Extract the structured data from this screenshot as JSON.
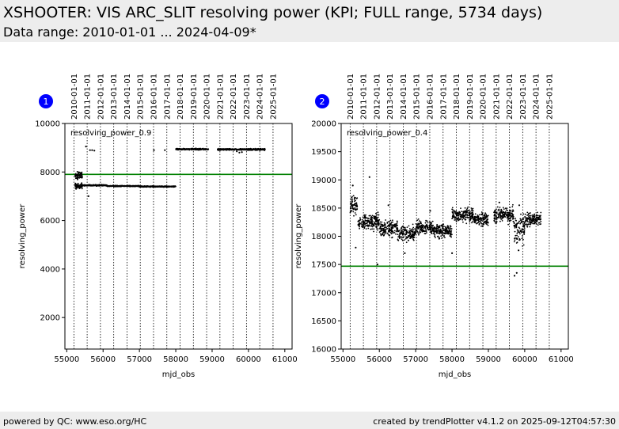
{
  "header": {
    "title": "XSHOOTER: VIS ARC_SLIT resolving power (KPI; FULL range, 5734 days)",
    "subtitle": "Data range: 2010-01-01 ... 2024-04-09*"
  },
  "footer": {
    "left": "powered by QC: www.eso.org/HC",
    "right": "created by trendPlotter v4.1.2 on 2025-09-12T04:57:30"
  },
  "colors": {
    "header_bg": "#ededed",
    "reference_line": "#008000",
    "badge": "#0000ff",
    "points": "#000000"
  },
  "chart_data": [
    {
      "type": "scatter",
      "badge": "1",
      "annotation": "resolving_power_0.9",
      "xlabel": "mjd_obs",
      "ylabel": "resolving_power",
      "xlim": [
        54950,
        61200
      ],
      "ylim": [
        700,
        10000
      ],
      "xticks": [
        55000,
        56000,
        57000,
        58000,
        59000,
        60000,
        61000
      ],
      "yticks": [
        2000,
        4000,
        6000,
        8000,
        10000
      ],
      "year_markers": {
        "labels": [
          "2010-01-01",
          "2011-01-01",
          "2012-01-01",
          "2013-01-01",
          "2014-01-01",
          "2015-01-01",
          "2016-01-01",
          "2017-01-01",
          "2018-01-01",
          "2019-01-01",
          "2020-01-01",
          "2021-01-01",
          "2022-01-01",
          "2023-01-01",
          "2024-01-01",
          "2025-01-01"
        ],
        "mjd": [
          55197,
          55562,
          55927,
          56293,
          56658,
          57023,
          57388,
          57754,
          58119,
          58484,
          58849,
          59215,
          59580,
          59945,
          60310,
          60676
        ]
      },
      "reference_line": 7900,
      "series": [
        {
          "segments": [
            {
              "x": [
                55230,
                55430
              ],
              "y": 7420,
              "spread": 120
            },
            {
              "x": [
                55230,
                55430
              ],
              "y": 7850,
              "spread": 150
            },
            {
              "x": [
                55430,
                56100
              ],
              "y": 7450,
              "spread": 25
            },
            {
              "x": [
                56100,
                57000
              ],
              "y": 7420,
              "spread": 20
            },
            {
              "x": [
                57000,
                58000
              ],
              "y": 7400,
              "spread": 20
            },
            {
              "x": [
                58000,
                58900
              ],
              "y": 8940,
              "spread": 25
            },
            {
              "x": [
                59150,
                60470
              ],
              "y": 8930,
              "spread": 30
            }
          ],
          "outliers": [
            {
              "x": 55530,
              "y": 9050
            },
            {
              "x": 55640,
              "y": 8900
            },
            {
              "x": 55700,
              "y": 8900
            },
            {
              "x": 55760,
              "y": 8880
            },
            {
              "x": 55600,
              "y": 7000
            },
            {
              "x": 57400,
              "y": 8900
            },
            {
              "x": 57700,
              "y": 8900
            },
            {
              "x": 59750,
              "y": 8800
            },
            {
              "x": 59820,
              "y": 8820
            },
            {
              "x": 59680,
              "y": 8850
            }
          ]
        }
      ]
    },
    {
      "type": "scatter",
      "badge": "2",
      "annotation": "resolving_power_0.4",
      "xlabel": "mjd_obs",
      "ylabel": "resolving_power",
      "xlim": [
        54950,
        61200
      ],
      "ylim": [
        16000,
        20000
      ],
      "xticks": [
        55000,
        56000,
        57000,
        58000,
        59000,
        60000,
        61000
      ],
      "yticks": [
        16000,
        16500,
        17000,
        17500,
        18000,
        18500,
        19000,
        19500,
        20000
      ],
      "year_markers": {
        "labels": [
          "2010-01-01",
          "2011-01-01",
          "2012-01-01",
          "2013-01-01",
          "2014-01-01",
          "2015-01-01",
          "2016-01-01",
          "2017-01-01",
          "2018-01-01",
          "2019-01-01",
          "2020-01-01",
          "2021-01-01",
          "2022-01-01",
          "2023-01-01",
          "2024-01-01",
          "2025-01-01"
        ],
        "mjd": [
          55197,
          55562,
          55927,
          56293,
          56658,
          57023,
          57388,
          57754,
          58119,
          58484,
          58849,
          59215,
          59580,
          59945,
          60310,
          60676
        ]
      },
      "reference_line": 17470,
      "series": [
        {
          "segments": [
            {
              "x": [
                55200,
                55400
              ],
              "y": 18550,
              "spread": 180
            },
            {
              "x": [
                55400,
                56000
              ],
              "y": 18250,
              "spread": 120
            },
            {
              "x": [
                56000,
                56500
              ],
              "y": 18150,
              "spread": 120
            },
            {
              "x": [
                56500,
                57000
              ],
              "y": 18050,
              "spread": 130
            },
            {
              "x": [
                57000,
                57500
              ],
              "y": 18150,
              "spread": 110
            },
            {
              "x": [
                57500,
                58000
              ],
              "y": 18100,
              "spread": 120
            },
            {
              "x": [
                58000,
                58600
              ],
              "y": 18370,
              "spread": 110
            },
            {
              "x": [
                58600,
                59000
              ],
              "y": 18300,
              "spread": 110
            },
            {
              "x": [
                59150,
                59700
              ],
              "y": 18380,
              "spread": 130
            },
            {
              "x": [
                59700,
                60000
              ],
              "y": 18150,
              "spread": 250
            },
            {
              "x": [
                60000,
                60450
              ],
              "y": 18300,
              "spread": 110
            }
          ],
          "outliers": [
            {
              "x": 55270,
              "y": 18900
            },
            {
              "x": 55350,
              "y": 17800
            },
            {
              "x": 55730,
              "y": 19050
            },
            {
              "x": 55950,
              "y": 17500
            },
            {
              "x": 56250,
              "y": 18550
            },
            {
              "x": 56700,
              "y": 17700
            },
            {
              "x": 57400,
              "y": 18450
            },
            {
              "x": 58000,
              "y": 17700
            },
            {
              "x": 59300,
              "y": 18600
            },
            {
              "x": 59720,
              "y": 17300
            },
            {
              "x": 59780,
              "y": 17350
            },
            {
              "x": 59830,
              "y": 17750
            },
            {
              "x": 59850,
              "y": 18550
            }
          ]
        }
      ]
    }
  ]
}
